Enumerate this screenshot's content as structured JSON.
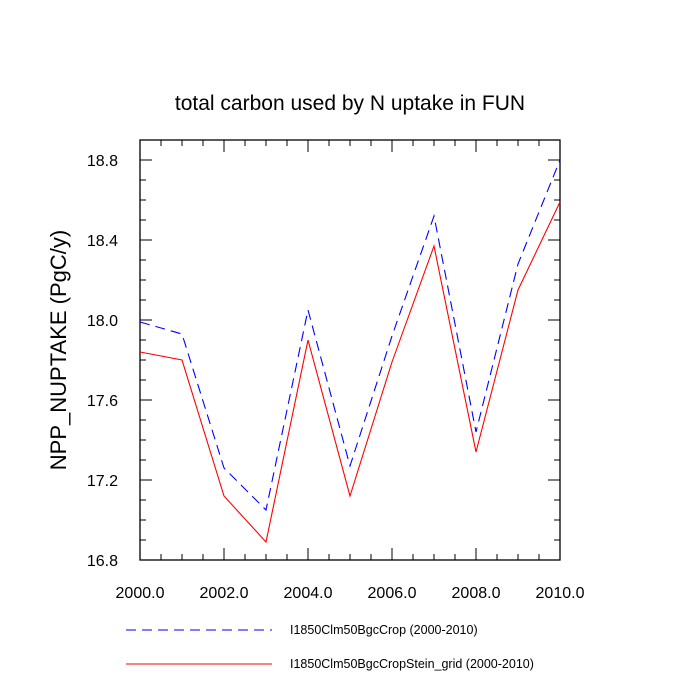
{
  "chart_data": {
    "type": "line",
    "title": "total carbon used by N uptake in FUN",
    "xlabel": "",
    "ylabel": "NPP_NUPTAKE  (PgC/y)",
    "xlim": [
      2000,
      2010
    ],
    "ylim": [
      16.8,
      18.9
    ],
    "x_ticks": [
      "2000.0",
      "2002.0",
      "2004.0",
      "2006.0",
      "2008.0",
      "2010.0"
    ],
    "y_ticks": [
      "16.8",
      "17.2",
      "17.6",
      "18.0",
      "18.4",
      "18.8"
    ],
    "grid": false,
    "legend_position": "bottom",
    "x": [
      2000,
      2001,
      2002,
      2003,
      2004,
      2005,
      2006,
      2007,
      2008,
      2009,
      2010
    ],
    "series": [
      {
        "name": "I1850Clm50BgcCrop (2000-2010)",
        "color": "#0000ff",
        "dash": "dashed",
        "values": [
          17.99,
          17.93,
          17.26,
          17.05,
          18.05,
          17.27,
          17.92,
          18.52,
          17.44,
          18.28,
          18.8
        ]
      },
      {
        "name": "I1850Clm50BgcCropStein_grid (2000-2010)",
        "color": "#ff0000",
        "dash": "solid",
        "values": [
          17.84,
          17.8,
          17.12,
          16.89,
          17.9,
          17.12,
          17.79,
          18.37,
          17.34,
          18.15,
          18.59
        ]
      }
    ]
  }
}
